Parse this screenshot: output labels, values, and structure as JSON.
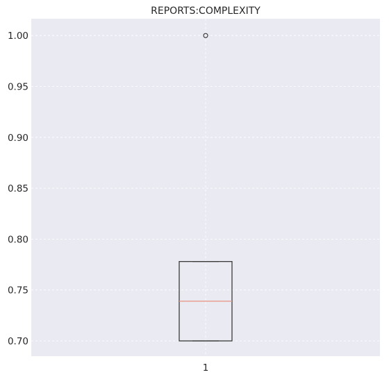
{
  "chart_data": {
    "type": "box",
    "title": "REPORTS:COMPLEXITY",
    "xlabel": "",
    "ylabel": "",
    "categories": [
      "1"
    ],
    "yticks": [
      "0.70",
      "0.75",
      "0.80",
      "0.85",
      "0.90",
      "0.95",
      "1.00"
    ],
    "ylim": [
      0.685,
      1.0165
    ],
    "grid": true,
    "boxes": [
      {
        "category": "1",
        "whisker_low": 0.7,
        "q1": 0.7,
        "median": 0.739,
        "q3": 0.778,
        "whisker_high": 0.778,
        "outliers": [
          1.0
        ]
      }
    ],
    "colors": {
      "background": "#eaeaf2",
      "box": "#3a3a3a",
      "median": "#e8998b",
      "outlier": "#333333"
    }
  }
}
